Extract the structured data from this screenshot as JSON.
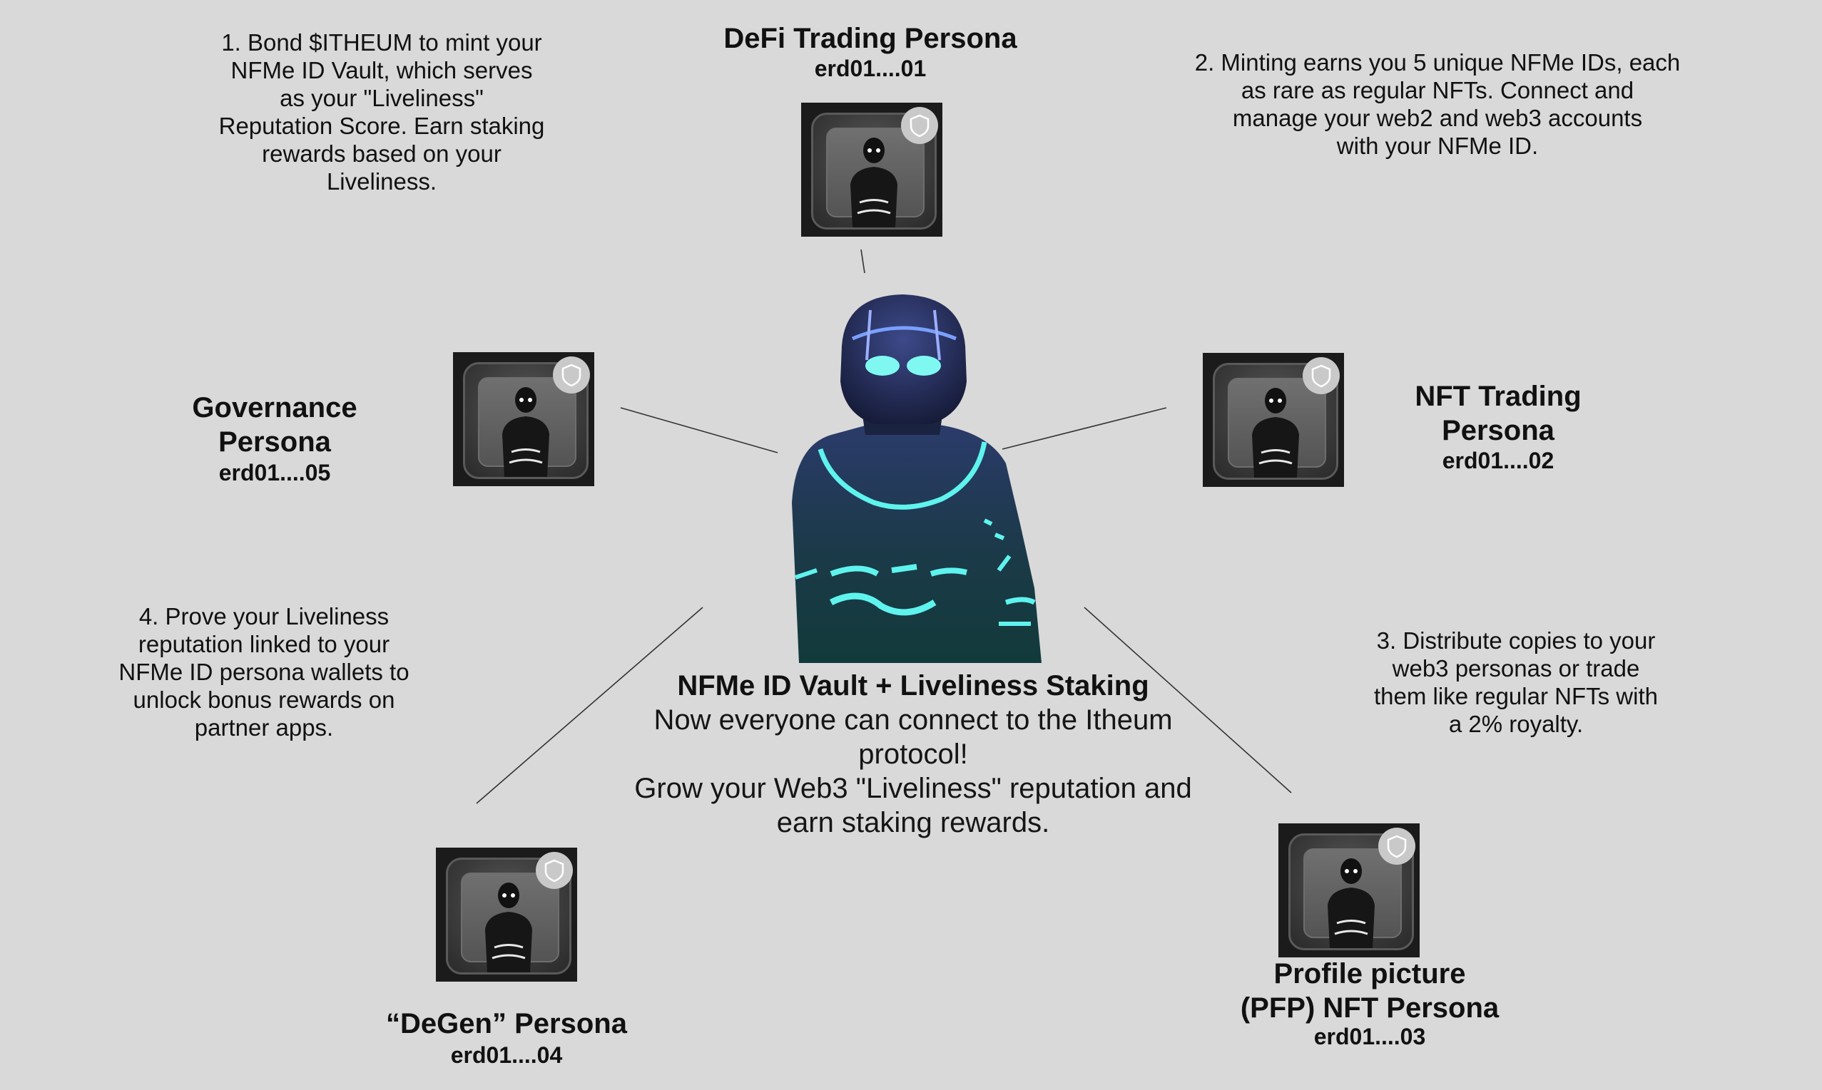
{
  "center": {
    "title": "NFMe ID Vault + Liveliness Staking",
    "body": "Now everyone can connect to the Itheum\nprotocol!\nGrow your Web3 \"Liveliness\" reputation and\nearn staking rewards."
  },
  "steps": {
    "s1": "1. Bond $ITHEUM to mint your\nNFMe ID Vault, which serves\nas your \"Liveliness\"\nReputation Score. Earn staking\nrewards based on your\nLiveliness.",
    "s2": "2. Minting earns you 5 unique NFMe IDs, each\nas rare as regular NFTs. Connect and\nmanage your web2 and web3 accounts\nwith your NFMe ID.",
    "s3": "3. Distribute copies to your\nweb3 personas or trade\nthem like regular NFTs with\na 2% royalty.",
    "s4": "4. Prove your Liveliness\nreputation linked to your\nNFMe ID persona wallets to\nunlock bonus rewards on\npartner apps."
  },
  "personas": {
    "defi": {
      "title": "DeFi Trading Persona",
      "addr": "erd01....01"
    },
    "nft": {
      "title": "NFT Trading\nPersona",
      "addr": "erd01....02"
    },
    "pfp": {
      "title": "Profile picture\n(PFP) NFT Persona",
      "addr": "erd01....03"
    },
    "degen": {
      "title": "“DeGen” Persona",
      "addr": "erd01....04"
    },
    "gov": {
      "title": "Governance\nPersona",
      "addr": "erd01....05"
    }
  },
  "icons": {
    "badge": "shield-icon",
    "avatar": "glowing-figure-avatar"
  },
  "colors": {
    "background": "#d9d9d9",
    "glow": "#5ff3ee",
    "figure": "#1e2d4a"
  }
}
